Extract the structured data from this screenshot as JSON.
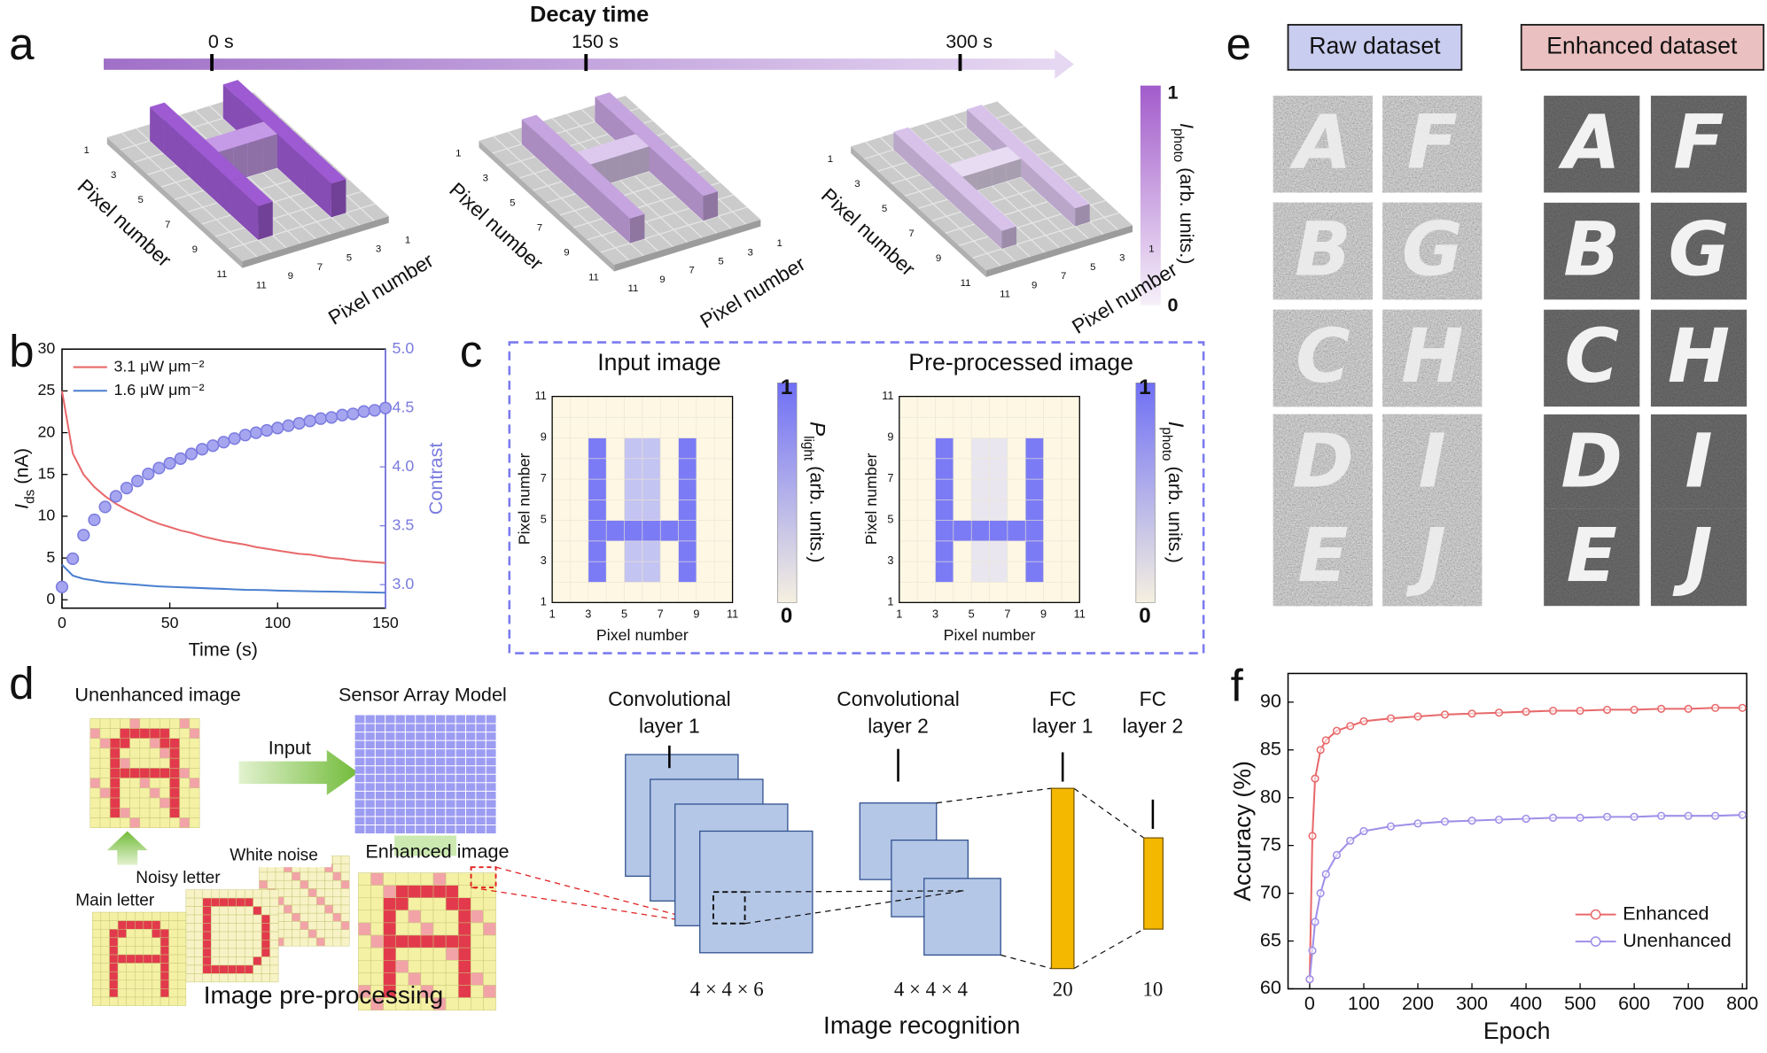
{
  "panel_labels": [
    "a",
    "b",
    "c",
    "d",
    "e",
    "f"
  ],
  "a": {
    "title": "Decay time",
    "times": [
      "0 s",
      "150 s",
      "300 s"
    ],
    "axis_label": "Pixel number",
    "plate_ticks": [
      1,
      3,
      5,
      7,
      9,
      11
    ],
    "colorbar": {
      "symbol": "I",
      "sub": "photo",
      "unit": " (arb. units.)",
      "max": "1",
      "min": "0"
    }
  },
  "c": {
    "axis_label": "Pixel number",
    "ticks": [
      1,
      3,
      5,
      7,
      9,
      11
    ],
    "input": {
      "title": "Input image",
      "colorbar": {
        "symbol": "P",
        "sub": "light",
        "unit": " (arb. units.)",
        "max": "1",
        "min": "0"
      }
    },
    "processed": {
      "title": "Pre-processed image",
      "colorbar": {
        "symbol": "I",
        "sub": "photo",
        "unit": " (arb. units.)",
        "max": "1",
        "min": "0"
      }
    }
  },
  "d": {
    "preprocessing": {
      "unenhanced": "Unenhanced image",
      "input": "Input",
      "sensor": "Sensor Array Model",
      "white_noise": "White noise",
      "noisy": "Noisy letter",
      "enhanced": "Enhanced image",
      "main": "Main letter",
      "caption": "Image pre-processing"
    },
    "recognition": {
      "layers": [
        {
          "name": [
            "Convolutional",
            "layer 1"
          ],
          "size": "4 × 4 × 6"
        },
        {
          "name": [
            "Convolutional",
            "layer 2"
          ],
          "size": "4 × 4 × 4"
        },
        {
          "name": [
            "FC",
            "layer 1"
          ],
          "size": 20
        },
        {
          "name": [
            "FC",
            "layer 2"
          ],
          "size": 10
        }
      ],
      "caption": "Image recognition"
    }
  },
  "e": {
    "raw": {
      "title": "Raw dataset"
    },
    "enhanced": {
      "title": "Enhanced dataset"
    },
    "letters": [
      "A",
      "B",
      "C",
      "D",
      "E",
      "F",
      "G",
      "H",
      "I",
      "J"
    ]
  },
  "chart_data": [
    {
      "type": "line",
      "xlabel": "Time (s)",
      "ylabel": {
        "symbol": "I",
        "sub": "ds",
        "unit": " (nA)"
      },
      "x": [
        0,
        5,
        10,
        15,
        20,
        25,
        30,
        35,
        40,
        45,
        50,
        55,
        60,
        65,
        70,
        75,
        80,
        85,
        90,
        95,
        100,
        105,
        110,
        115,
        120,
        125,
        130,
        135,
        140,
        145,
        150
      ],
      "xlim": [
        0,
        150
      ],
      "xticks": [
        0,
        50,
        100,
        150
      ],
      "ylim": [
        -1,
        30
      ],
      "yticks": [
        0,
        5,
        10,
        15,
        20,
        25,
        30
      ],
      "y2lim": [
        2.8,
        5.0
      ],
      "y2ticks": [
        {
          "value": 3.0,
          "label": "3.0"
        },
        3.5,
        {
          "value": 4.0,
          "label": "4.0"
        },
        4.5,
        {
          "value": 5.0,
          "label": "5.0"
        }
      ],
      "y2color": "#7b7be0",
      "series": [
        {
          "name": "3.1 μW μm⁻²",
          "color": "#e8696b",
          "mode": "lines",
          "values": [
            25,
            17.5,
            15,
            13.5,
            12.4,
            11.5,
            10.8,
            10.2,
            9.6,
            9.1,
            8.7,
            8.3,
            8.0,
            7.6,
            7.3,
            7.0,
            6.8,
            6.6,
            6.3,
            6.1,
            5.9,
            5.7,
            5.5,
            5.4,
            5.2,
            5.0,
            4.9,
            4.7,
            4.6,
            4.5,
            4.4
          ]
        },
        {
          "name": "1.6 μW μm⁻²",
          "color": "#4a7fd0",
          "mode": "lines",
          "values": [
            4.2,
            2.9,
            2.5,
            2.3,
            2.1,
            2.0,
            1.9,
            1.8,
            1.7,
            1.6,
            1.55,
            1.5,
            1.45,
            1.4,
            1.35,
            1.3,
            1.25,
            1.2,
            1.18,
            1.15,
            1.1,
            1.08,
            1.05,
            1.02,
            1.0,
            0.98,
            0.95,
            0.93,
            0.9,
            0.88,
            0.85
          ]
        },
        {
          "name": "Contrast",
          "color": "#a6a6f0",
          "mode": "markers",
          "axis": "y2",
          "values": [
            2.98,
            3.22,
            3.42,
            3.55,
            3.66,
            3.75,
            3.82,
            3.88,
            3.94,
            3.99,
            4.03,
            4.07,
            4.11,
            4.15,
            4.18,
            4.21,
            4.24,
            4.27,
            4.29,
            4.31,
            4.33,
            4.35,
            4.37,
            4.39,
            4.41,
            4.42,
            4.44,
            4.45,
            4.47,
            4.48,
            4.5
          ]
        }
      ]
    },
    {
      "type": "line",
      "xlabel": "Epoch",
      "ylabel": "Accuracy (%)",
      "x": [
        0,
        5,
        10,
        20,
        30,
        50,
        75,
        100,
        150,
        200,
        250,
        300,
        350,
        400,
        450,
        500,
        550,
        600,
        650,
        700,
        750,
        800
      ],
      "xlim": [
        -40,
        808
      ],
      "xticks": [
        0,
        100,
        200,
        300,
        400,
        500,
        600,
        700,
        800
      ],
      "ylim": [
        60,
        93
      ],
      "yticks": [
        60,
        65,
        70,
        75,
        80,
        85,
        90
      ],
      "legend": "lower right",
      "series": [
        {
          "name": "Enhanced",
          "color": "#e8696b",
          "mode": "lines+markers",
          "values": [
            61,
            76,
            82,
            85,
            86,
            87,
            87.5,
            88,
            88.3,
            88.5,
            88.7,
            88.8,
            88.9,
            89,
            89.1,
            89.1,
            89.2,
            89.2,
            89.3,
            89.3,
            89.4,
            89.4
          ]
        },
        {
          "name": "Unenhanced",
          "color": "#a08ee8",
          "mode": "lines+markers",
          "values": [
            61,
            64,
            67,
            70,
            72,
            74,
            75.5,
            76.5,
            77,
            77.3,
            77.5,
            77.6,
            77.7,
            77.8,
            77.9,
            77.9,
            78,
            78,
            78.1,
            78.1,
            78.1,
            78.2
          ]
        }
      ]
    }
  ]
}
